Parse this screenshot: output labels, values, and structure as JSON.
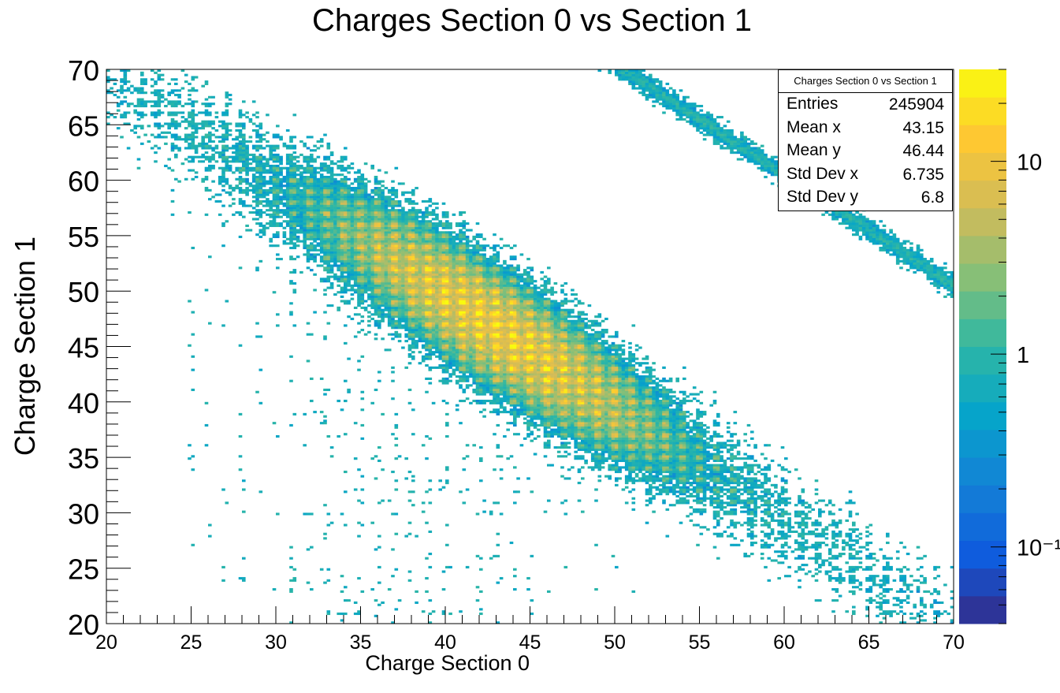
{
  "chart_data": {
    "type": "heatmap",
    "title": "Charges Section 0 vs Section 1",
    "xlabel": "Charge Section 0",
    "ylabel": "Charge Section 1",
    "xlim": [
      20,
      70
    ],
    "ylim": [
      20,
      70
    ],
    "x_ticks": [
      "20",
      "25",
      "30",
      "35",
      "40",
      "45",
      "50",
      "55",
      "60",
      "65",
      "70"
    ],
    "y_ticks": [
      "20",
      "25",
      "30",
      "35",
      "40",
      "45",
      "50",
      "55",
      "60",
      "65",
      "70"
    ],
    "colorbar": {
      "scale": "log",
      "min": 0.04,
      "max": 30,
      "tick_labels": [
        "10",
        "1",
        "10⁻¹"
      ],
      "tick_values": [
        10,
        1,
        0.1
      ],
      "palette": [
        "#352a87",
        "#0f5cdd",
        "#1481d6",
        "#06a4ca",
        "#2eb7a4",
        "#87bf77",
        "#d1bb59",
        "#fec832",
        "#f9fb0e"
      ]
    },
    "distribution": {
      "band": "x + y ≈ 89.6 (diagonal band from about (27,63) to (66,27)), half-width about 3.5",
      "peak_region": "x 33–53 along the band, peak density about 20",
      "lattice": "blob structure at integer charge values",
      "secondary_band": "faint diagonal from (50,71) to (70,52)"
    },
    "stats": {
      "title": "Charges Section 0 vs Section 1",
      "rows": [
        {
          "label": "Entries",
          "value": "245904"
        },
        {
          "label": "Mean x",
          "value": "43.15"
        },
        {
          "label": "Mean y",
          "value": "46.44"
        },
        {
          "label": "Std Dev x",
          "value": "6.735"
        },
        {
          "label": "Std Dev y",
          "value": "6.8"
        }
      ]
    }
  }
}
